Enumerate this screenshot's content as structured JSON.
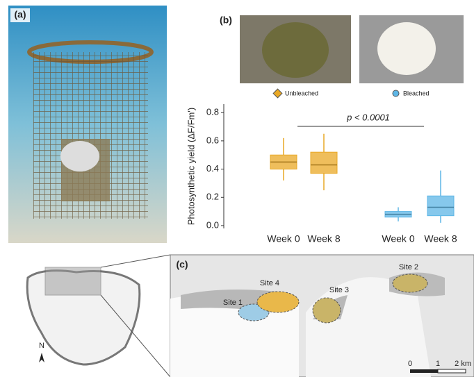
{
  "panels": {
    "a": "(a)",
    "b": "(b)",
    "c": "(c)"
  },
  "map": {
    "sites": [
      "Site 1",
      "Site 2",
      "Site 3",
      "Site 4"
    ],
    "scale": [
      "0",
      "1",
      "2 km"
    ],
    "north": "N"
  },
  "chart_data": {
    "type": "box",
    "ylabel": "Photosynthetic yield (ΔF/Fm')",
    "annotation": "p < 0.0001",
    "categories": [
      "Week 0",
      "Week 8"
    ],
    "ylim": [
      -0.02,
      0.86
    ],
    "yticks": [
      {
        "value": 0,
        "label": "0.0"
      },
      0.2,
      0.4,
      0.6,
      0.8
    ],
    "series": [
      {
        "name": "Unbleached",
        "color": "#e9a825",
        "whisker_low": [
          0.32,
          0.25
        ],
        "q1": [
          0.4,
          0.37
        ],
        "median": [
          0.45,
          0.43
        ],
        "q3": [
          0.5,
          0.52
        ],
        "whisker_high": [
          0.62,
          0.65
        ]
      },
      {
        "name": "Bleached",
        "color": "#5db6e6",
        "whisker_low": [
          0.03,
          0.02
        ],
        "q1": [
          0.06,
          0.07
        ],
        "median": [
          0.08,
          0.13
        ],
        "q3": [
          0.1,
          0.21
        ],
        "whisker_high": [
          0.13,
          0.39
        ]
      }
    ]
  }
}
